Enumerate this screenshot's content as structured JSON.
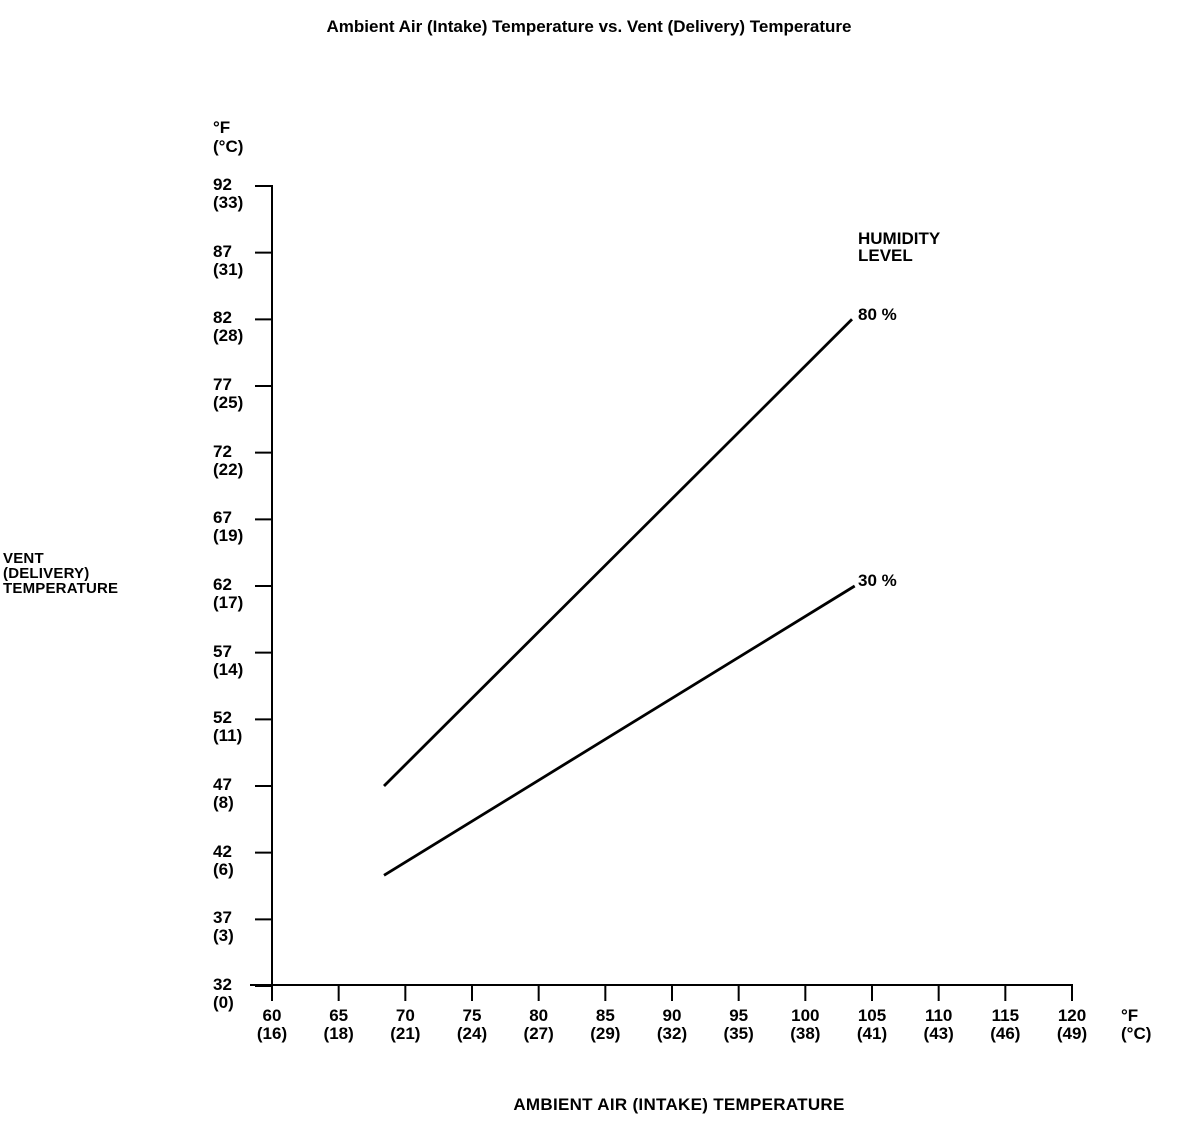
{
  "page": {
    "background": "#ffffff",
    "ink": "#000000"
  },
  "chart_data": {
    "type": "line",
    "title": "Ambient Air (Intake) Temperature vs. Vent (Delivery) Temperature",
    "xlabel": "AMBIENT AIR (INTAKE) TEMPERATURE",
    "ylabel_lines": [
      "VENT",
      "(DELIVERY)",
      "TEMPERATURE"
    ],
    "axis_unit": {
      "f": "°F",
      "c": "(°C)"
    },
    "legend_title_lines": [
      "HUMIDITY",
      "LEVEL"
    ],
    "xlim": [
      60,
      120
    ],
    "ylim": [
      32,
      92
    ],
    "grid": false,
    "legend_position": "right-of-line-ends",
    "x_ticks": [
      {
        "f": "60",
        "c": "(16)"
      },
      {
        "f": "65",
        "c": "(18)"
      },
      {
        "f": "70",
        "c": "(21)"
      },
      {
        "f": "75",
        "c": "(24)"
      },
      {
        "f": "80",
        "c": "(27)"
      },
      {
        "f": "85",
        "c": "(29)"
      },
      {
        "f": "90",
        "c": "(32)"
      },
      {
        "f": "95",
        "c": "(35)"
      },
      {
        "f": "100",
        "c": "(38)"
      },
      {
        "f": "105",
        "c": "(41)"
      },
      {
        "f": "110",
        "c": "(43)"
      },
      {
        "f": "115",
        "c": "(46)"
      },
      {
        "f": "120",
        "c": "(49)"
      }
    ],
    "y_ticks": [
      {
        "f": "92",
        "c": "(33)"
      },
      {
        "f": "87",
        "c": "(31)"
      },
      {
        "f": "82",
        "c": "(28)"
      },
      {
        "f": "77",
        "c": "(25)"
      },
      {
        "f": "72",
        "c": "(22)"
      },
      {
        "f": "67",
        "c": "(19)"
      },
      {
        "f": "62",
        "c": "(17)"
      },
      {
        "f": "57",
        "c": "(14)"
      },
      {
        "f": "52",
        "c": "(11)"
      },
      {
        "f": "47",
        "c": "(8)"
      },
      {
        "f": "42",
        "c": "(6)"
      },
      {
        "f": "37",
        "c": "(3)"
      },
      {
        "f": "32",
        "c": "(0)"
      }
    ],
    "series": [
      {
        "name": "80 %",
        "humidity_percent": 80,
        "points": [
          {
            "x": 68.4,
            "y": 47.0
          },
          {
            "x": 103.5,
            "y": 82.0
          }
        ]
      },
      {
        "name": "30 %",
        "humidity_percent": 30,
        "points": [
          {
            "x": 68.4,
            "y": 40.3
          },
          {
            "x": 103.7,
            "y": 62.0
          }
        ]
      }
    ]
  }
}
